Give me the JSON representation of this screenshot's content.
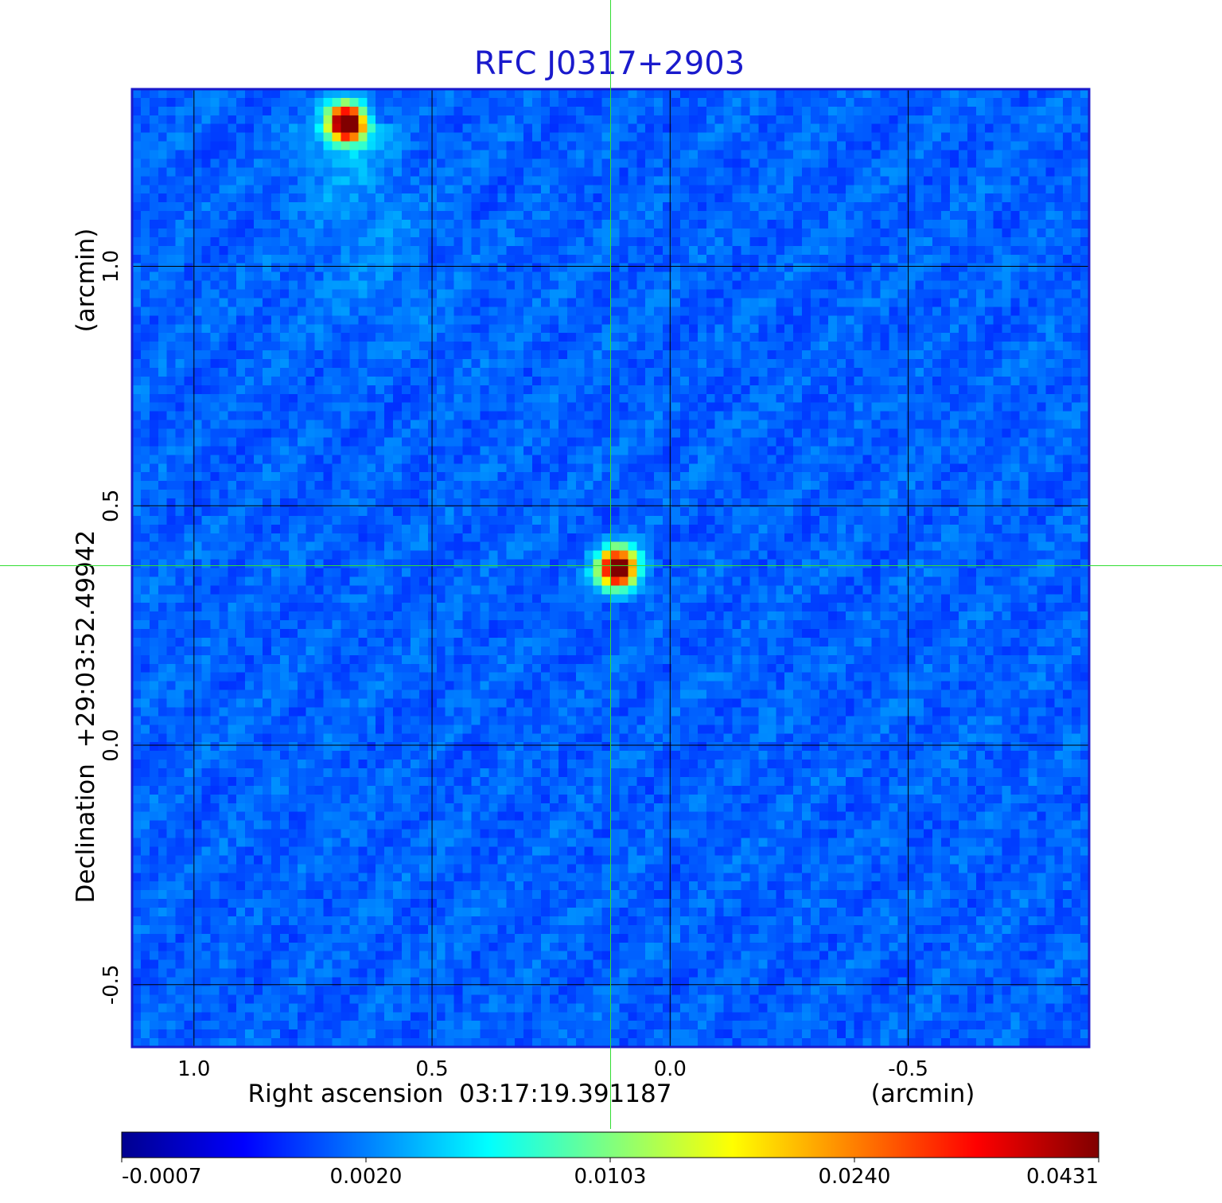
{
  "chart_data": {
    "type": "heatmap",
    "title": "RFC J0317+2903",
    "xlabel": "Right ascension  03:17:19.391187",
    "xunit": "(arcmin)",
    "ylabel": "Declination  +29:03:52.49942",
    "yunit": "(arcmin)",
    "xlim": [
      1.13,
      -0.88
    ],
    "ylim": [
      -0.63,
      1.37
    ],
    "x_ticks": [
      1.0,
      0.5,
      0.0,
      -0.5
    ],
    "x_tick_labels": [
      "1.0",
      "0.5",
      "0.0",
      "-0.5"
    ],
    "y_ticks": [
      1.0,
      0.5,
      0.0,
      -0.5
    ],
    "y_tick_labels": [
      "1.0",
      "0.5",
      "0.0",
      "-0.5"
    ],
    "grid": true,
    "crosshair": {
      "x": 0.125,
      "y": 0.375,
      "color": "#33dd33"
    },
    "colormap": "jet",
    "colorbar": {
      "ticks": [
        -0.0007,
        0.002,
        0.0103,
        0.024,
        0.0431
      ],
      "tick_labels": [
        "-0.0007",
        "0.0020",
        "0.0103",
        "0.0240",
        "0.0431"
      ],
      "placement": "bottom"
    },
    "sources": [
      {
        "x": 0.68,
        "y": 1.3,
        "peak": 0.0431
      },
      {
        "x": 0.11,
        "y": 0.37,
        "peak": 0.0431
      }
    ],
    "background_level": 0.0
  },
  "colors": {
    "title": "#1a1acc",
    "frame": "#1a1acc",
    "grid": "#000000",
    "crosshair": "#33dd33",
    "text": "#000000"
  }
}
